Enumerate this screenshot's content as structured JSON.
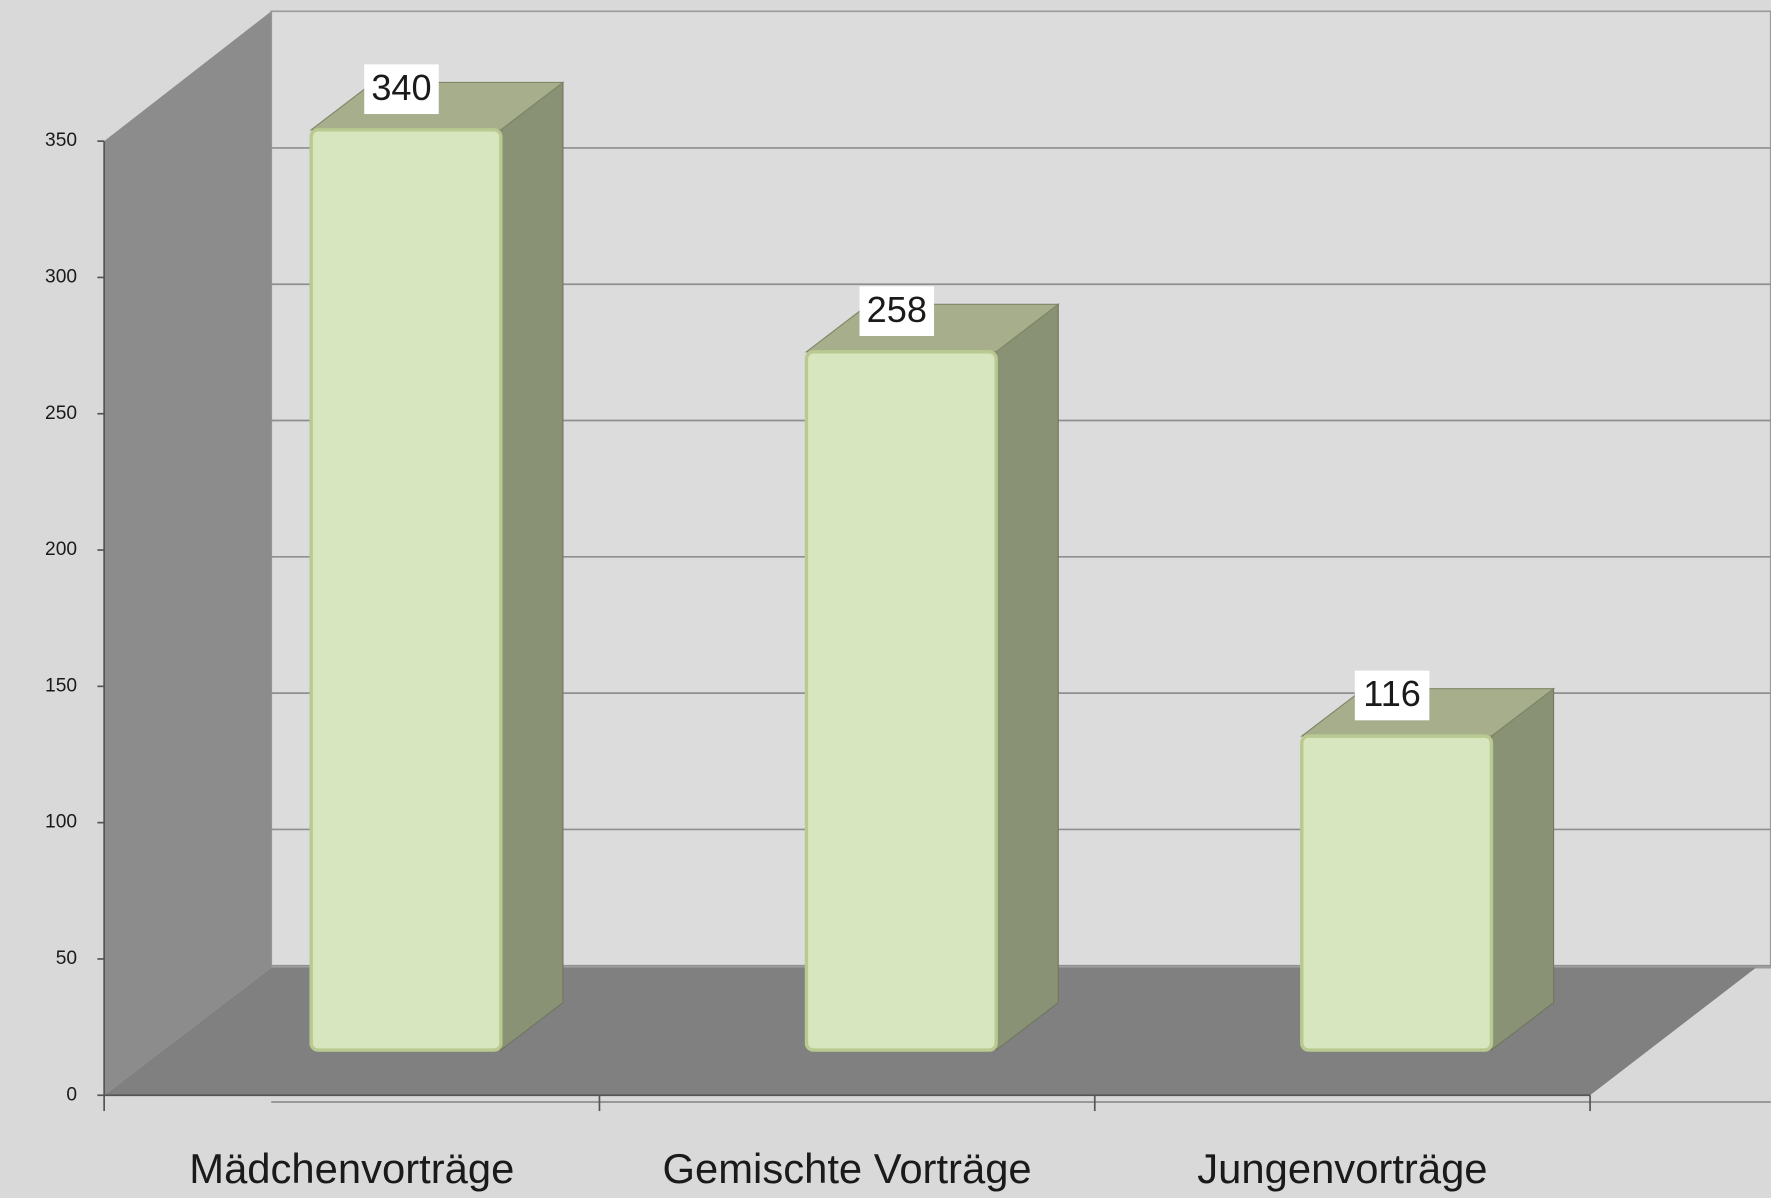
{
  "chart_data": {
    "type": "bar",
    "categories": [
      "Mädchenvorträge",
      "Gemischte Vorträge",
      "Jungenvorträge"
    ],
    "values": [
      340,
      258,
      116
    ],
    "color": "#d8e6c0",
    "ylim": [
      0,
      350
    ],
    "yticks": [
      0,
      50,
      100,
      150,
      200,
      250,
      300,
      350
    ],
    "grid": true
  }
}
